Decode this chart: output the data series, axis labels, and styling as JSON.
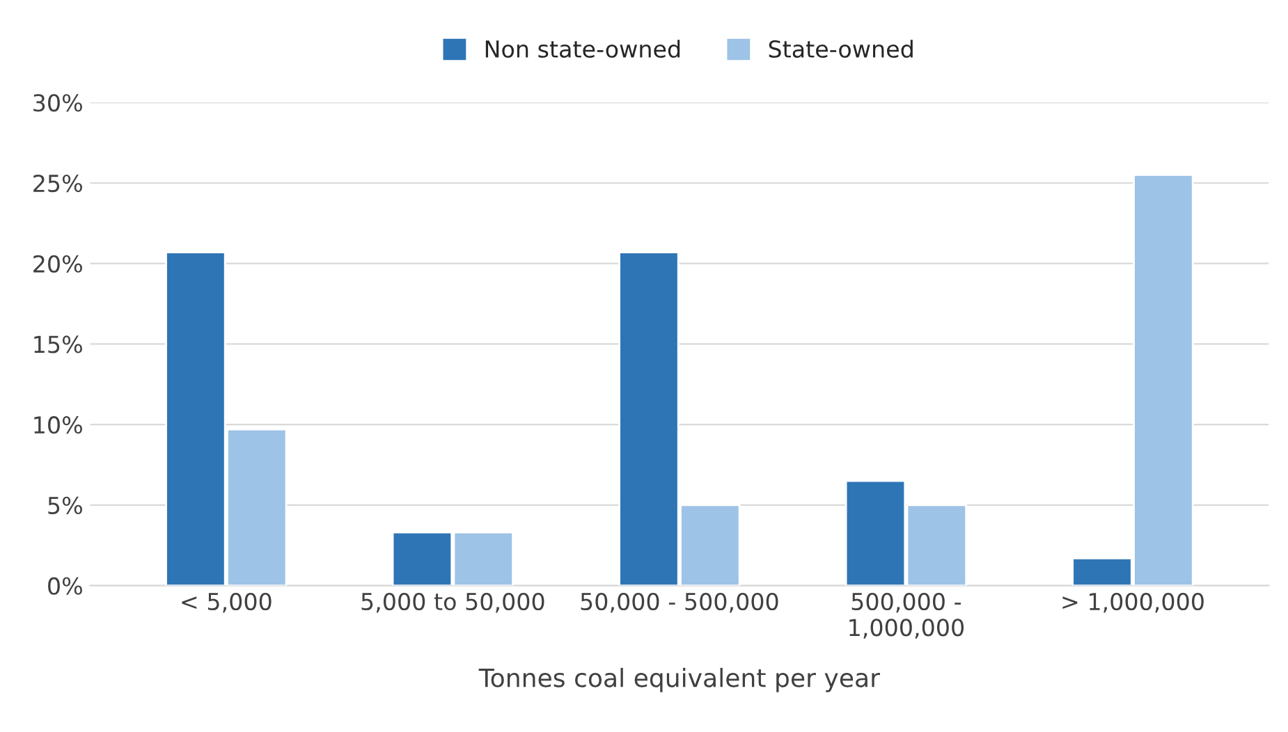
{
  "chart_data": {
    "type": "bar",
    "xlabel": "Tonnes coal equivalent per year",
    "categories": [
      "< 5,000",
      "5,000 to 50,000",
      "50,000 - 500,000",
      "500,000 -\n1,000,000",
      "> 1,000,000"
    ],
    "series": [
      {
        "name": "Non state-owned",
        "color": "#2e75b6",
        "values": [
          20.7,
          3.3,
          20.7,
          6.5,
          1.7
        ]
      },
      {
        "name": "State-owned",
        "color": "#9dc3e6",
        "values": [
          9.7,
          3.3,
          5.0,
          5.0,
          25.5
        ]
      }
    ],
    "ylim": [
      0,
      30
    ],
    "yticks": [
      {
        "value": 0,
        "label": "0%"
      },
      {
        "value": 5,
        "label": "5%"
      },
      {
        "value": 10,
        "label": "10%"
      },
      {
        "value": 15,
        "label": "15%"
      },
      {
        "value": 20,
        "label": "20%"
      },
      {
        "value": 25,
        "label": "25%"
      },
      {
        "value": 30,
        "label": "30%"
      }
    ],
    "grid": "y",
    "legend": "top"
  }
}
